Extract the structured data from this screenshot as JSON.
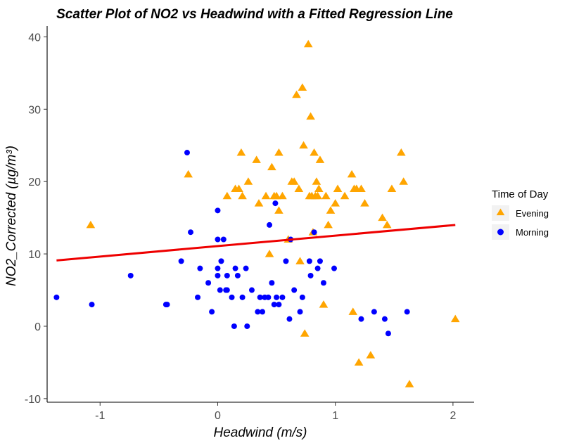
{
  "colors": {
    "evening": "#FFA500",
    "morning": "#0000FF",
    "regression": "#EE0000",
    "axis": "#000000"
  },
  "chart_data": {
    "type": "scatter",
    "title": "Scatter Plot of NO2 vs Headwind with a Fitted Regression Line",
    "xlabel": "Headwind (m/s)",
    "ylabel": "NO2_Corrected (µg/m³)",
    "xlim": [
      -1.45,
      2.18
    ],
    "ylim": [
      -10.5,
      41.5
    ],
    "xticks": [
      -1,
      0,
      1,
      2
    ],
    "yticks": [
      -10,
      0,
      10,
      20,
      30,
      40
    ],
    "grid": false,
    "legend": {
      "title": "Time of Day",
      "position": "right"
    },
    "series": [
      {
        "name": "Evening",
        "marker": "triangle",
        "points": [
          [
            -1.08,
            14
          ],
          [
            -0.25,
            21
          ],
          [
            0.08,
            18
          ],
          [
            0.15,
            19
          ],
          [
            0.18,
            19
          ],
          [
            0.2,
            24
          ],
          [
            0.21,
            18
          ],
          [
            0.26,
            20
          ],
          [
            0.33,
            23
          ],
          [
            0.35,
            17
          ],
          [
            0.41,
            18
          ],
          [
            0.44,
            10
          ],
          [
            0.46,
            22
          ],
          [
            0.48,
            18
          ],
          [
            0.5,
            18
          ],
          [
            0.52,
            16
          ],
          [
            0.52,
            24
          ],
          [
            0.55,
            18
          ],
          [
            0.6,
            12
          ],
          [
            0.63,
            20
          ],
          [
            0.65,
            20
          ],
          [
            0.67,
            32
          ],
          [
            0.69,
            19
          ],
          [
            0.7,
            9
          ],
          [
            0.72,
            33
          ],
          [
            0.73,
            25
          ],
          [
            0.74,
            -1
          ],
          [
            0.77,
            39
          ],
          [
            0.78,
            18
          ],
          [
            0.79,
            29
          ],
          [
            0.8,
            18
          ],
          [
            0.81,
            13
          ],
          [
            0.82,
            24
          ],
          [
            0.83,
            18
          ],
          [
            0.84,
            20
          ],
          [
            0.85,
            18
          ],
          [
            0.86,
            19
          ],
          [
            0.87,
            23
          ],
          [
            0.9,
            3
          ],
          [
            0.92,
            18
          ],
          [
            0.94,
            14
          ],
          [
            0.96,
            16
          ],
          [
            1.0,
            17
          ],
          [
            1.02,
            19
          ],
          [
            1.08,
            18
          ],
          [
            1.14,
            21
          ],
          [
            1.15,
            2
          ],
          [
            1.16,
            19
          ],
          [
            1.18,
            19
          ],
          [
            1.2,
            -5
          ],
          [
            1.22,
            19
          ],
          [
            1.25,
            17
          ],
          [
            1.3,
            -4
          ],
          [
            1.4,
            15
          ],
          [
            1.44,
            14
          ],
          [
            1.48,
            19
          ],
          [
            1.56,
            24
          ],
          [
            1.58,
            20
          ],
          [
            1.63,
            -8
          ],
          [
            2.02,
            1
          ]
        ]
      },
      {
        "name": "Morning",
        "marker": "circle",
        "points": [
          [
            -1.37,
            4
          ],
          [
            -1.07,
            3
          ],
          [
            -0.74,
            7
          ],
          [
            -0.44,
            3
          ],
          [
            -0.43,
            3
          ],
          [
            -0.31,
            9
          ],
          [
            -0.26,
            24
          ],
          [
            -0.23,
            13
          ],
          [
            -0.17,
            4
          ],
          [
            -0.15,
            8
          ],
          [
            -0.08,
            6
          ],
          [
            -0.05,
            2
          ],
          [
            0.0,
            16
          ],
          [
            0.0,
            12
          ],
          [
            0.0,
            8
          ],
          [
            0.0,
            7
          ],
          [
            0.02,
            5
          ],
          [
            0.03,
            9
          ],
          [
            0.05,
            12
          ],
          [
            0.07,
            5
          ],
          [
            0.08,
            5
          ],
          [
            0.08,
            7
          ],
          [
            0.12,
            4
          ],
          [
            0.14,
            0
          ],
          [
            0.15,
            8
          ],
          [
            0.17,
            7
          ],
          [
            0.21,
            4
          ],
          [
            0.24,
            8
          ],
          [
            0.25,
            0
          ],
          [
            0.29,
            5
          ],
          [
            0.34,
            2
          ],
          [
            0.36,
            4
          ],
          [
            0.38,
            2
          ],
          [
            0.4,
            4
          ],
          [
            0.43,
            4
          ],
          [
            0.44,
            14
          ],
          [
            0.46,
            6
          ],
          [
            0.48,
            3
          ],
          [
            0.49,
            17
          ],
          [
            0.5,
            4
          ],
          [
            0.52,
            3
          ],
          [
            0.55,
            4
          ],
          [
            0.58,
            9
          ],
          [
            0.61,
            1
          ],
          [
            0.62,
            12
          ],
          [
            0.65,
            5
          ],
          [
            0.7,
            2
          ],
          [
            0.72,
            4
          ],
          [
            0.78,
            9
          ],
          [
            0.79,
            7
          ],
          [
            0.82,
            13
          ],
          [
            0.85,
            8
          ],
          [
            0.87,
            9
          ],
          [
            0.9,
            6
          ],
          [
            0.99,
            8
          ],
          [
            1.22,
            1
          ],
          [
            1.33,
            2
          ],
          [
            1.42,
            1
          ],
          [
            1.45,
            -1
          ],
          [
            1.61,
            2
          ]
        ]
      }
    ],
    "regression_line": {
      "x": [
        -1.37,
        2.02
      ],
      "y": [
        9.1,
        14.0
      ]
    }
  }
}
